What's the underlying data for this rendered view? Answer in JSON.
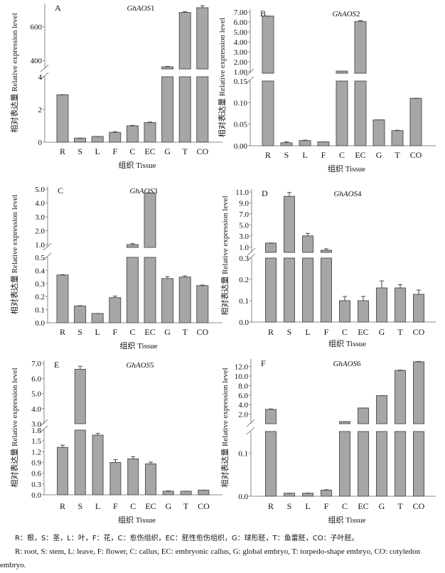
{
  "chart_data": [
    {
      "type": "bar",
      "panel": "A",
      "title_italic": "GhAOS",
      "title_num": "1",
      "xlabel": "组织 Tissue",
      "ylabel": "相对表达量 Relative expression level",
      "categories": [
        "R",
        "S",
        "L",
        "F",
        "C",
        "EC",
        "G",
        "T",
        "CO"
      ],
      "values": [
        2.9,
        0.25,
        0.35,
        0.6,
        1.0,
        1.2,
        362,
        684,
        712
      ],
      "errors": [
        0.02,
        0.01,
        0.01,
        0.04,
        0.03,
        0.03,
        3,
        5,
        12
      ],
      "axis_break": true,
      "lower_ylim": [
        0,
        4
      ],
      "upper_ylim": [
        350,
        720
      ],
      "lower_ticks": [
        "0",
        "2",
        "4"
      ],
      "lower_tick_values": [
        0,
        2,
        4
      ],
      "upper_ticks": [
        "400",
        "600"
      ],
      "upper_tick_values": [
        400,
        600
      ],
      "grid": false
    },
    {
      "type": "bar",
      "panel": "B",
      "title_italic": "GhAOS",
      "title_num": "2",
      "xlabel": "组织 Tissue",
      "ylabel": "相对表达量 Relative expression level",
      "categories": [
        "R",
        "S",
        "L",
        "F",
        "C",
        "EC",
        "G",
        "T",
        "CO"
      ],
      "values": [
        6.6,
        0.007,
        0.012,
        0.009,
        1.0,
        6.05,
        0.06,
        0.035,
        0.11
      ],
      "errors": [
        0.02,
        0.002,
        0.001,
        0.0,
        0.05,
        0.1,
        0.0005,
        0.001,
        0.0005
      ],
      "axis_break": true,
      "lower_ylim": [
        0,
        0.15
      ],
      "upper_ylim": [
        0.85,
        7.0
      ],
      "lower_ticks": [
        "0.00",
        "0.05",
        "0.10",
        "0.15"
      ],
      "lower_tick_values": [
        0,
        0.05,
        0.1,
        0.15
      ],
      "upper_ticks": [
        "1.00",
        "2.00",
        "3.00",
        "4.00",
        "5.00",
        "6.00",
        "7.00"
      ],
      "upper_tick_values": [
        1,
        2,
        3,
        4,
        5,
        6,
        7
      ],
      "grid": false
    },
    {
      "type": "bar",
      "panel": "C",
      "title_italic": "GhAOS",
      "title_num": "3",
      "xlabel": "组织 Tissue",
      "ylabel": "相对表达量 Relative expression level",
      "categories": [
        "R",
        "S",
        "L",
        "F",
        "C",
        "EC",
        "G",
        "T",
        "CO"
      ],
      "values": [
        0.365,
        0.128,
        0.071,
        0.192,
        1.0,
        4.72,
        0.338,
        0.349,
        0.284
      ],
      "errors": [
        0.003,
        0.003,
        0.002,
        0.012,
        0.07,
        0.02,
        0.015,
        0.009,
        0.004
      ],
      "axis_break": true,
      "lower_ylim": [
        0,
        0.5
      ],
      "upper_ylim": [
        0.8,
        5.0
      ],
      "lower_ticks": [
        "0.0",
        "0.1",
        "0.2",
        "0.3",
        "0.4",
        "0.5"
      ],
      "lower_tick_values": [
        0,
        0.1,
        0.2,
        0.3,
        0.4,
        0.5
      ],
      "upper_ticks": [
        "1.0",
        "2.0",
        "3.0",
        "4.0",
        "5.0"
      ],
      "upper_tick_values": [
        1,
        2,
        3,
        4,
        5
      ],
      "grid": false
    },
    {
      "type": "bar",
      "panel": "D",
      "title_italic": "GhAOS",
      "title_num": "4",
      "xlabel": "组织 Tissue",
      "ylabel": "相对表达量 Relative expression level",
      "categories": [
        "R",
        "S",
        "L",
        "F",
        "C",
        "EC",
        "G",
        "T",
        "CO"
      ],
      "values": [
        1.7,
        10.2,
        3.0,
        0.35,
        0.1,
        0.1,
        0.16,
        0.16,
        0.13
      ],
      "errors": [
        0.05,
        0.7,
        0.45,
        0.3,
        0.02,
        0.02,
        0.033,
        0.015,
        0.02
      ],
      "axis_break": true,
      "lower_ylim": [
        0,
        0.3
      ],
      "upper_ylim": [
        0.0,
        11.0
      ],
      "lower_ticks": [
        "0.0",
        "0.1",
        "0.2",
        "0.3"
      ],
      "lower_tick_values": [
        0,
        0.1,
        0.2,
        0.3
      ],
      "upper_ticks": [
        "1.0",
        "3.0",
        "5.0",
        "7.0",
        "9.0",
        "11.0"
      ],
      "upper_tick_values": [
        1,
        3,
        5,
        7,
        9,
        11
      ],
      "grid": false
    },
    {
      "type": "bar",
      "panel": "E",
      "title_italic": "GhAOS",
      "title_num": "5",
      "xlabel": "组织 Tissue",
      "ylabel": "相对表达量 Relative expression level",
      "categories": [
        "R",
        "S",
        "L",
        "F",
        "C",
        "EC",
        "G",
        "T",
        "CO"
      ],
      "values": [
        1.32,
        6.6,
        1.66,
        0.9,
        1.0,
        0.86,
        0.1,
        0.1,
        0.13
      ],
      "errors": [
        0.06,
        0.2,
        0.05,
        0.08,
        0.06,
        0.05,
        0.01,
        0.005,
        0.005
      ],
      "axis_break": true,
      "lower_ylim": [
        0,
        1.8
      ],
      "upper_ylim": [
        3.0,
        7.0
      ],
      "lower_ticks": [
        "0.0",
        "0.3",
        "0.6",
        "0.9",
        "1.2",
        "1.5",
        "1.8"
      ],
      "lower_tick_values": [
        0,
        0.3,
        0.6,
        0.9,
        1.2,
        1.5,
        1.8
      ],
      "upper_ticks": [
        "3.0",
        "4.0",
        "5.0",
        "6.0",
        "7.0"
      ],
      "upper_tick_values": [
        3,
        4,
        5,
        6,
        7
      ],
      "grid": false
    },
    {
      "type": "bar",
      "panel": "F",
      "title_italic": "GhAOS",
      "title_num": "6",
      "xlabel": "组织 Tissue",
      "ylabel": "相对表达量 Relative expression level",
      "categories": [
        "R",
        "S",
        "L",
        "F",
        "C",
        "EC",
        "G",
        "T",
        "CO"
      ],
      "values": [
        3.0,
        0.007,
        0.007,
        0.014,
        0.2,
        3.3,
        5.9,
        11.2,
        13.0
      ],
      "errors": [
        0.1,
        0.0005,
        0.0005,
        0.001,
        0.05,
        0.05,
        0.05,
        0.08,
        0.08
      ],
      "axis_break": true,
      "lower_ylim": [
        0,
        0.15
      ],
      "upper_ylim": [
        0.0,
        13.0
      ],
      "lower_ticks": [
        "0.0",
        "0.1"
      ],
      "lower_tick_values": [
        0,
        0.1
      ],
      "upper_ticks": [
        "2.0",
        "4.0",
        "6.0",
        "8.0",
        "10.0",
        "12.0"
      ],
      "upper_tick_values": [
        2,
        4,
        6,
        8,
        10,
        12
      ],
      "grid": false
    }
  ],
  "caption": {
    "zh": "R：根，S：茎，L：叶，F：花，C：愈伤组织，EC：胚性愈伤组织，G：球形胚，T：鱼雷胚，CO：子叶胚。",
    "en": "R: root, S: stem, L: leave, F: flower, C: callus, EC: embryonic callus, G: global embryo, T: torpedo-shape embryo, CO: cotyledon embryo."
  },
  "colors": {
    "bar_fill": "#a6a6a6",
    "bar_stroke": "#555555",
    "axis": "#888888"
  }
}
